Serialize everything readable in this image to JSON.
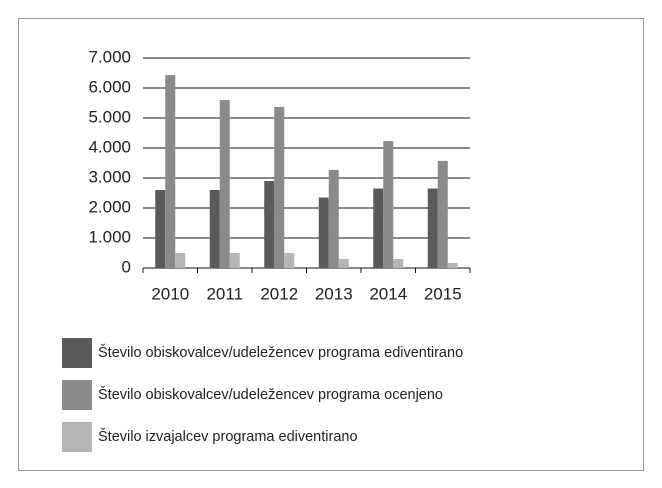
{
  "chart_data": {
    "type": "bar",
    "categories": [
      "2010",
      "2011",
      "2012",
      "2013",
      "2014",
      "2015"
    ],
    "series": [
      {
        "name": "Število obiskovalcev/udeležencev programa ediventirano",
        "color": "#5a5a5a",
        "values": [
          2600,
          2600,
          2900,
          2350,
          2650,
          2650
        ]
      },
      {
        "name": "Število obiskovalcev/udeležencev programa ocenjeno",
        "color": "#8a8a8a",
        "values": [
          6430,
          5600,
          5370,
          3270,
          4230,
          3570
        ]
      },
      {
        "name": "Število izvajalcev programa ediventirano",
        "color": "#b5b5b5",
        "values": [
          500,
          500,
          500,
          300,
          300,
          170
        ]
      }
    ],
    "ylim": [
      0,
      7000
    ],
    "yticks": [
      0,
      {
        "value": 1000,
        "label": "1.000"
      },
      {
        "value": 2000,
        "label": "2.000"
      },
      {
        "value": 3000,
        "label": "3.000"
      },
      {
        "value": 4000,
        "label": "4.000"
      },
      {
        "value": 5000,
        "label": "5.000"
      },
      {
        "value": 6000,
        "label": "6.000"
      },
      {
        "value": 7000,
        "label": "7.000"
      }
    ],
    "grid": true,
    "legend": "bottom"
  }
}
